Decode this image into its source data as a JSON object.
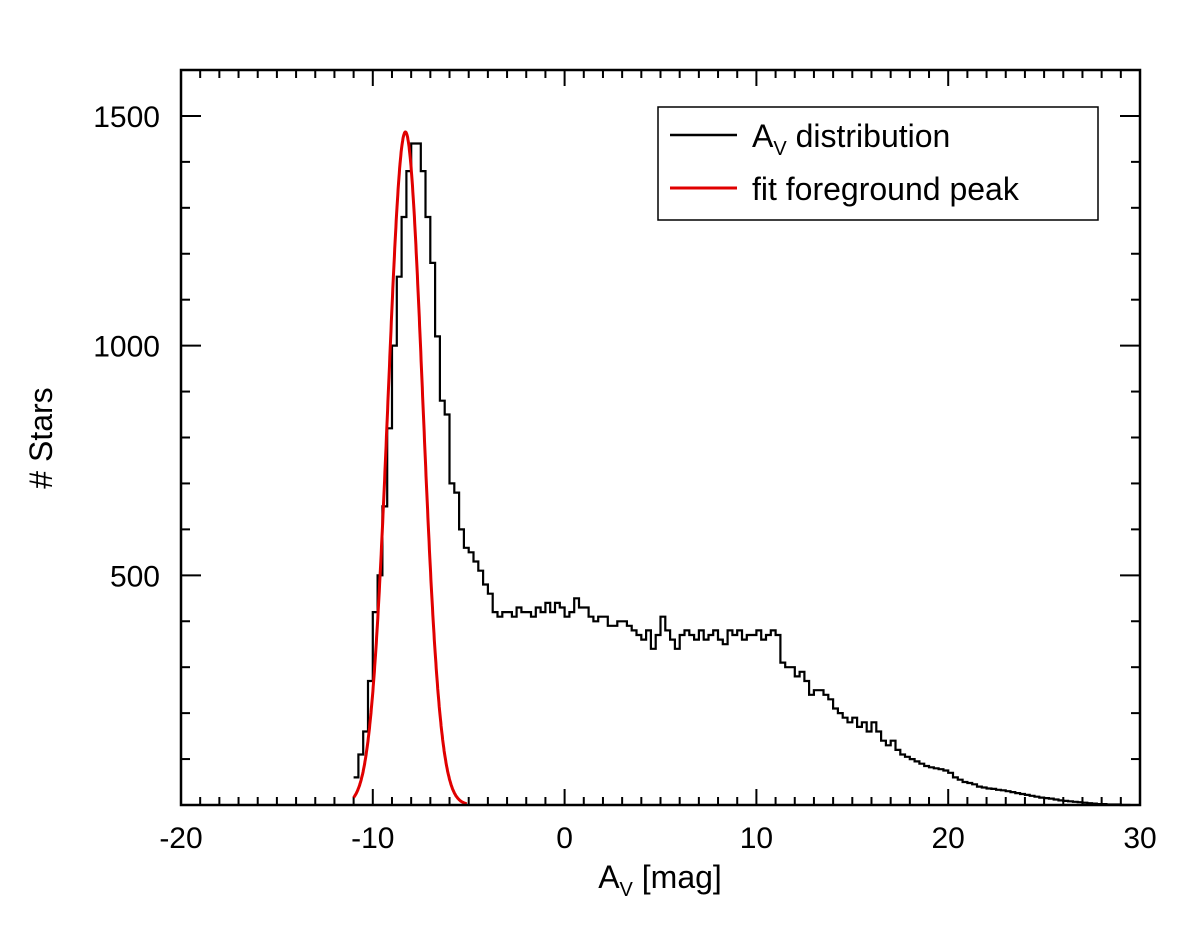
{
  "chart_data": {
    "type": "line",
    "title": "",
    "xlabel": {
      "main": "A",
      "sub": "V",
      "rest": " [mag]"
    },
    "ylabel": "# Stars",
    "xlim": [
      -20,
      30
    ],
    "ylim": [
      0,
      1600
    ],
    "xticks": [
      -20,
      -10,
      0,
      10,
      20,
      30
    ],
    "yticks": [
      500,
      1000,
      1500
    ],
    "xtick_labels": [
      "-20",
      "-10",
      "0",
      "10",
      "20",
      "30"
    ],
    "ytick_labels": [
      "500",
      "1000",
      "1500"
    ],
    "legend_position": "top-right",
    "series": [
      {
        "name": "A_V distribution",
        "legend": {
          "main": "A",
          "sub": "V",
          "rest": " distribution"
        },
        "style": "step",
        "color": "#000000",
        "bin_width": 0.25,
        "x_start": -11.0,
        "values": [
          60,
          110,
          160,
          270,
          420,
          500,
          650,
          820,
          1000,
          1150,
          1280,
          1380,
          1440,
          1440,
          1380,
          1280,
          1180,
          1020,
          880,
          850,
          700,
          680,
          600,
          560,
          550,
          530,
          510,
          480,
          460,
          420,
          410,
          420,
          420,
          410,
          430,
          420,
          420,
          410,
          430,
          420,
          440,
          420,
          440,
          430,
          410,
          420,
          450,
          430,
          430,
          410,
          400,
          410,
          410,
          390,
          390,
          400,
          400,
          390,
          380,
          370,
          360,
          380,
          340,
          370,
          410,
          380,
          360,
          340,
          370,
          380,
          370,
          360,
          380,
          360,
          370,
          380,
          360,
          350,
          380,
          370,
          380,
          360,
          370,
          370,
          380,
          360,
          370,
          380,
          370,
          310,
          300,
          300,
          280,
          290,
          270,
          240,
          250,
          250,
          240,
          230,
          210,
          200,
          190,
          180,
          190,
          170,
          180,
          160,
          180,
          160,
          140,
          130,
          140,
          120,
          110,
          105,
          100,
          95,
          90,
          85,
          82,
          80,
          78,
          75,
          70,
          60,
          55,
          50,
          48,
          45,
          40,
          38,
          36,
          35,
          33,
          32,
          30,
          28,
          26,
          24,
          22,
          20,
          18,
          16,
          15,
          14,
          12,
          10,
          9,
          8,
          7,
          6,
          5,
          4,
          3,
          2,
          2,
          1,
          1,
          1,
          0,
          0
        ]
      },
      {
        "name": "fit foreground peak",
        "legend": {
          "main": "fit foreground peak"
        },
        "style": "gaussian",
        "color": "#e00000",
        "amplitude": 1465,
        "center": -8.3,
        "sigma": 0.9,
        "x_range": [
          -11.0,
          -5.1
        ]
      }
    ]
  }
}
